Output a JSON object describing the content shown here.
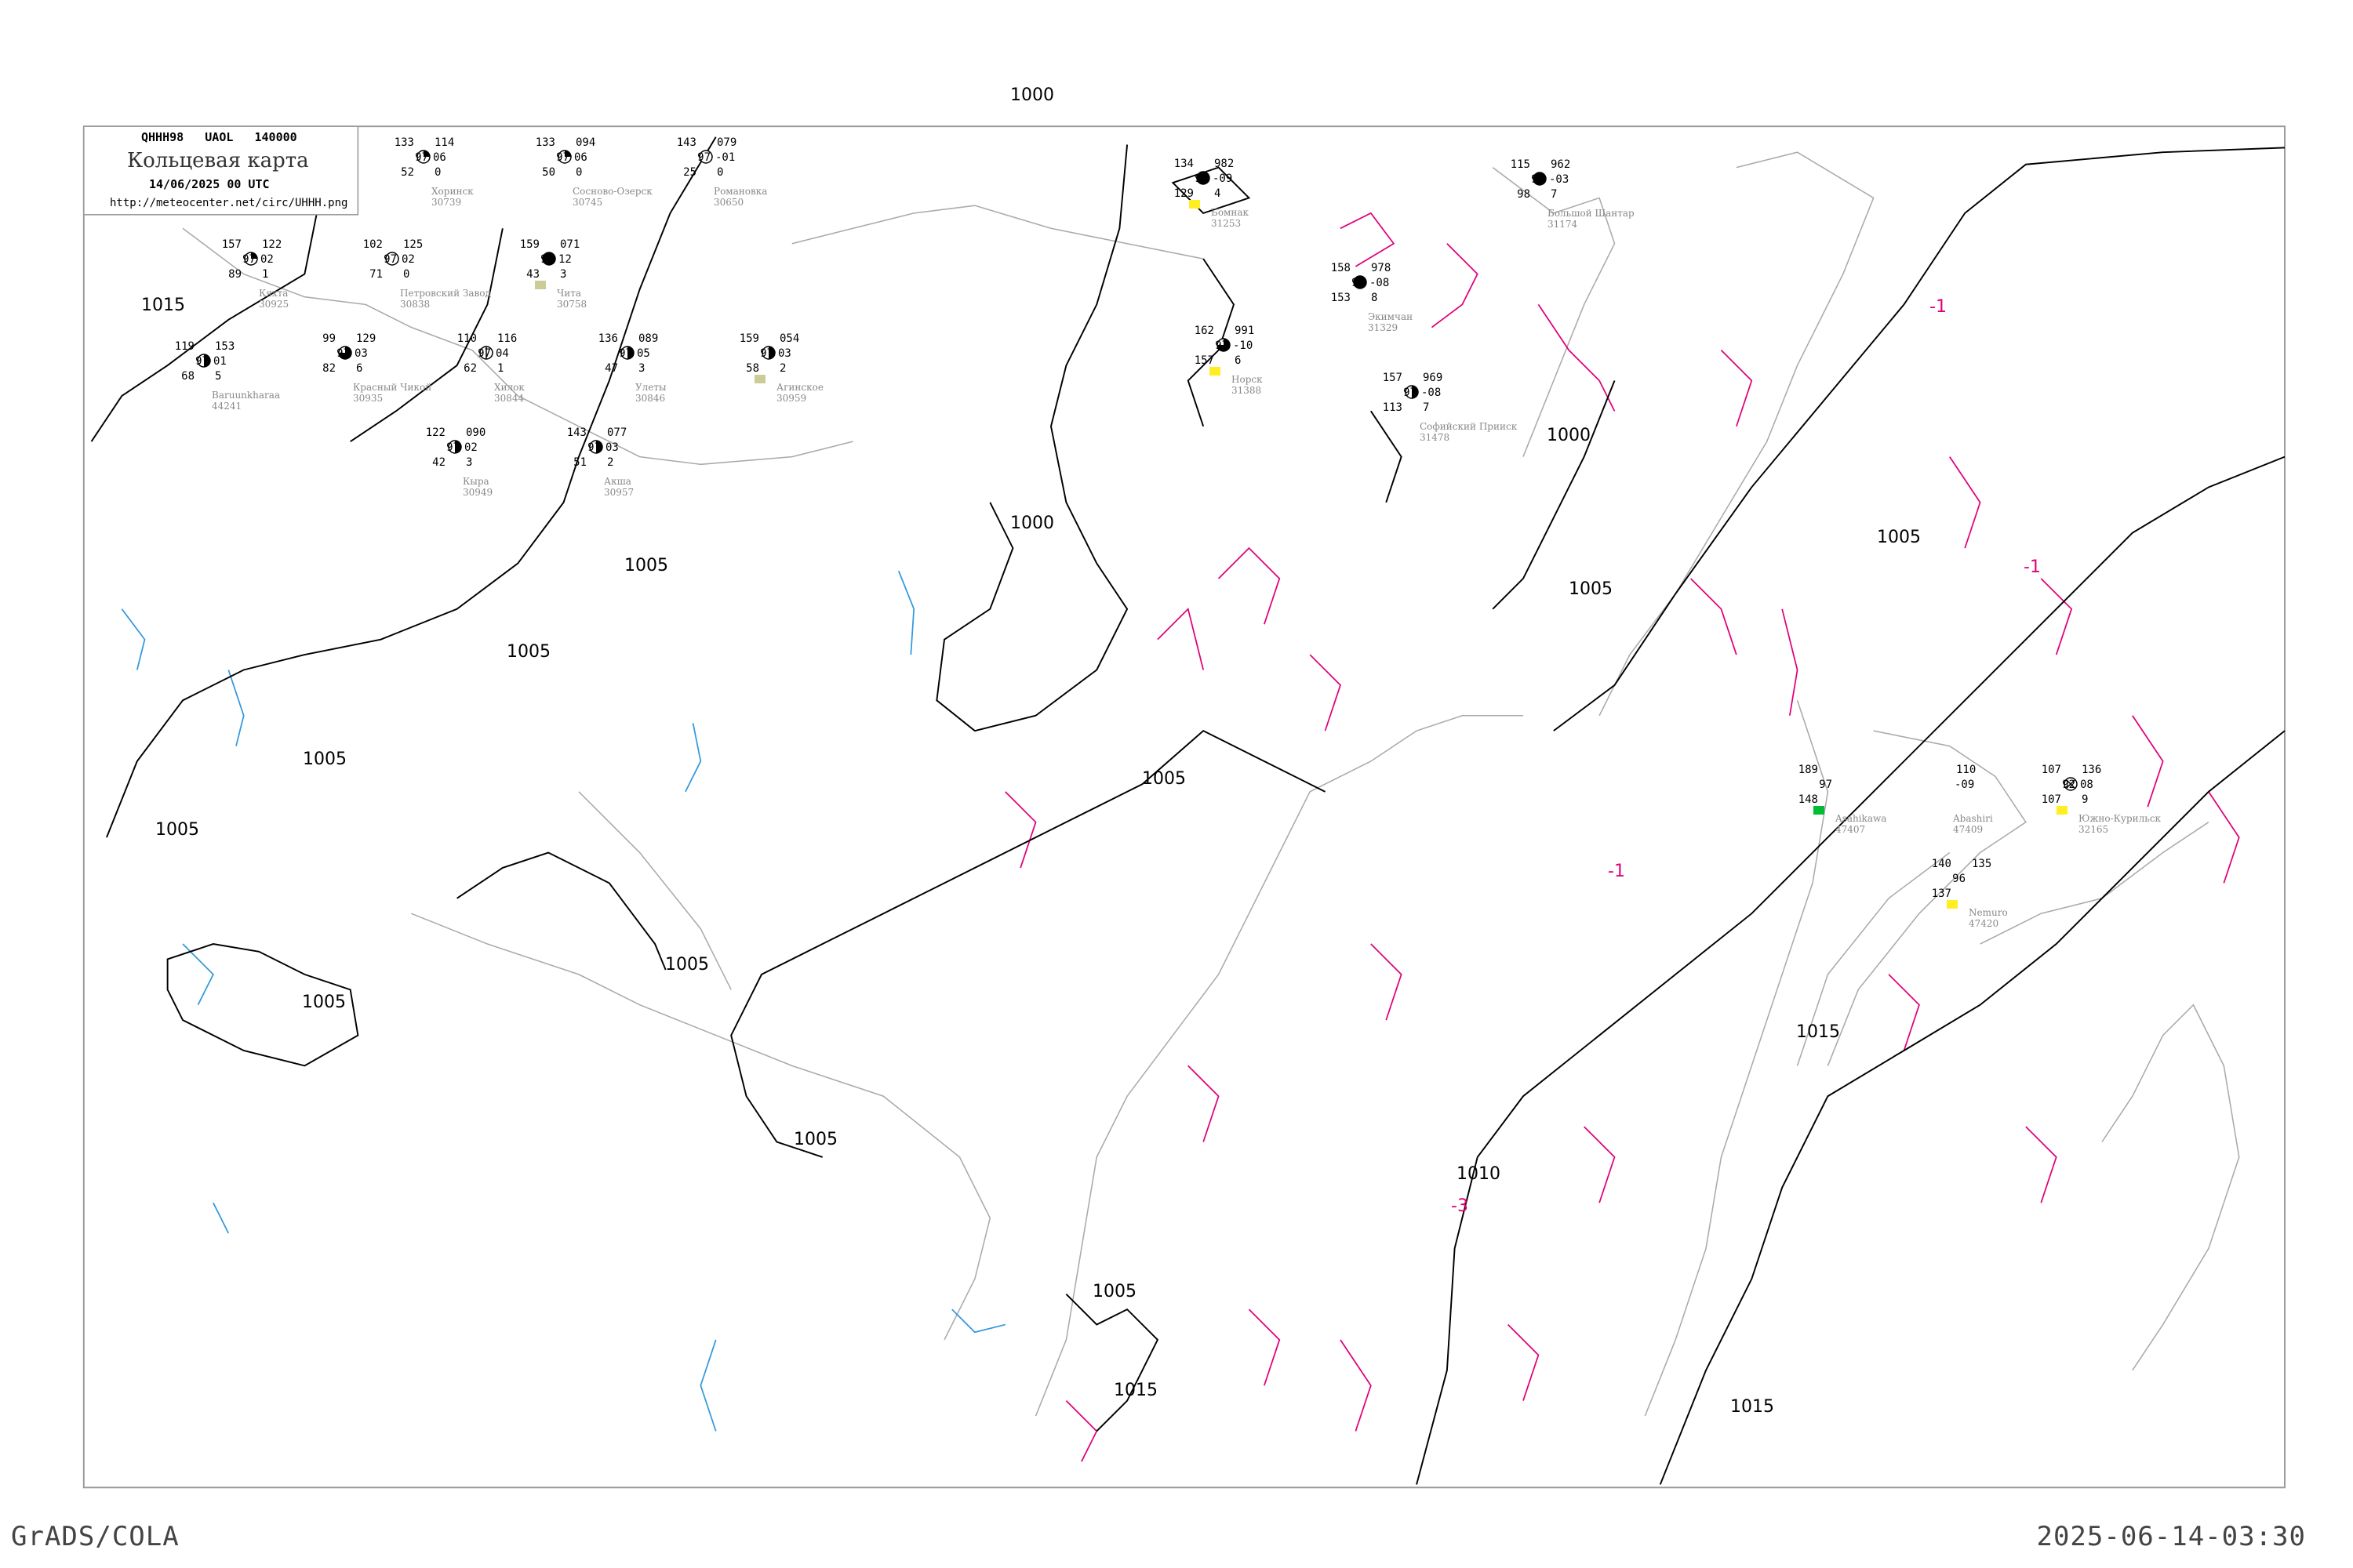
{
  "header": {
    "code": "QHHH98   UAOL   140000",
    "title": "Кольцевая карта",
    "datetime": "14/06/2025 00 UTC",
    "url": "http://meteocenter.net/circ/UHHH.png"
  },
  "footer": {
    "left": "GrADS/COLA",
    "right": "2025-06-14-03:30"
  },
  "colors": {
    "isobar": "#000000",
    "isotherm": "#e0007a",
    "coastline": "#aaaaaa",
    "river": "#3399dd",
    "station_name": "#888888",
    "precip_green": "#00bb33",
    "precip_yellow": "#ffee22"
  },
  "isobar_labels": [
    "1000",
    "1000",
    "1000",
    "1005",
    "1005",
    "1005",
    "1005",
    "1005",
    "1005",
    "1005",
    "1005",
    "1005",
    "1005",
    "1005",
    "1010",
    "1015",
    "1015",
    "1015",
    "1015"
  ],
  "isotherm_labels": [
    "-1",
    "-1",
    "-1",
    "-3"
  ],
  "stations": [
    {
      "name": "Бомнак",
      "id": "31253",
      "t": "134",
      "vis": "97",
      "td": "129",
      "p": "982",
      "tend": "-09",
      "a": "4",
      "cover": "full",
      "precip": "yellow"
    },
    {
      "name": "Большой Шантар",
      "id": "31174",
      "t": "115",
      "vis": "97",
      "td": "98",
      "p": "962",
      "tend": "-03",
      "a": "7",
      "cover": "full"
    },
    {
      "name": "Экимчан",
      "id": "31329",
      "t": "158",
      "vis": "97",
      "td": "153",
      "p": "978",
      "tend": "-08",
      "a": "8",
      "cover": "full"
    },
    {
      "name": "Норск",
      "id": "31388",
      "t": "162",
      "vis": "97",
      "td": "157",
      "p": "991",
      "tend": "-10",
      "a": "6",
      "cover": "three",
      "precip": "yellow"
    },
    {
      "name": "Софийский Прииск",
      "id": "31478",
      "t": "157",
      "vis": "97",
      "td": "113",
      "p": "969",
      "tend": "-08",
      "a": "7",
      "cover": "half"
    },
    {
      "name": "Кяхта",
      "id": "30925",
      "t": "157",
      "vis": "97",
      "td": "89",
      "p": "122",
      "tend": "02",
      "a": "1",
      "cover": "quarter"
    },
    {
      "name": "Красный Чикой",
      "id": "30935",
      "t": "99",
      "vis": "97",
      "td": "82",
      "p": "129",
      "tend": "03",
      "a": "6",
      "cover": "three"
    },
    {
      "name": "Хилок",
      "id": "30844",
      "t": "110",
      "vis": "97",
      "td": "62",
      "p": "116",
      "tend": "04",
      "a": "1",
      "cover": "line"
    },
    {
      "name": "Улеты",
      "id": "30846",
      "t": "136",
      "vis": "97",
      "td": "47",
      "p": "089",
      "tend": "05",
      "a": "3",
      "cover": "half"
    },
    {
      "name": "Чита",
      "id": "30758",
      "t": "159",
      "vis": "97",
      "td": "43",
      "p": "071",
      "tend": "12",
      "a": "3",
      "cover": "full",
      "precip": "khaki"
    },
    {
      "name": "Агинское",
      "id": "30959",
      "t": "159",
      "vis": "97",
      "td": "58",
      "p": "054",
      "tend": "03",
      "a": "2",
      "cover": "half",
      "precip": "khaki"
    },
    {
      "name": "Акша",
      "id": "30957",
      "t": "143",
      "vis": "97",
      "td": "51",
      "p": "077",
      "tend": "03",
      "a": "2",
      "cover": "half"
    },
    {
      "name": "Кыра",
      "id": "30949",
      "t": "122",
      "vis": "97",
      "td": "42",
      "p": "090",
      "tend": "02",
      "a": "3",
      "cover": "half"
    },
    {
      "name": "Baruunkharaa",
      "id": "44241",
      "t": "119",
      "vis": "97",
      "td": "68",
      "p": "153",
      "tend": "01",
      "a": "5",
      "cover": "half"
    },
    {
      "name": "Петровский Завод",
      "id": "30838",
      "t": "102",
      "vis": "97",
      "td": "71",
      "p": "125",
      "tend": "02",
      "a": "0",
      "cover": "empty"
    },
    {
      "name": "Хоринск",
      "id": "30739",
      "t": "133",
      "vis": "97",
      "td": "52",
      "p": "114",
      "tend": "06",
      "a": "0",
      "cover": "quarter"
    },
    {
      "name": "Сосново-Озерск",
      "id": "30745",
      "t": "133",
      "vis": "97",
      "td": "50",
      "p": "094",
      "tend": "06",
      "a": "0",
      "cover": "quarter"
    },
    {
      "name": "Романовка",
      "id": "30650",
      "t": "143",
      "vis": "97",
      "td": "25",
      "p": "079",
      "tend": "-01",
      "a": "0",
      "cover": "empty"
    },
    {
      "name": "Южно-Курильск",
      "id": "32165",
      "t": "107",
      "vis": "92",
      "td": "107",
      "p": "136",
      "tend": "08",
      "a": "9",
      "cover": "obscured",
      "precip": "yellow"
    },
    {
      "name": "Nemuro",
      "id": "47420",
      "t": "140",
      "vis": "96",
      "td": "137",
      "p": "135",
      "tend": "",
      "a": "",
      "cover": "none",
      "precip": "yellow"
    },
    {
      "name": "Asahikawa",
      "id": "47407",
      "t": "189",
      "vis": "97",
      "td": "148",
      "p": "",
      "tend": "",
      "a": "",
      "cover": "none",
      "precip": "green"
    },
    {
      "name": "Abashiri",
      "id": "47409",
      "t": "",
      "vis": "",
      "td": "",
      "p": "110",
      "tend": "-09",
      "a": "",
      "cover": "none"
    }
  ]
}
